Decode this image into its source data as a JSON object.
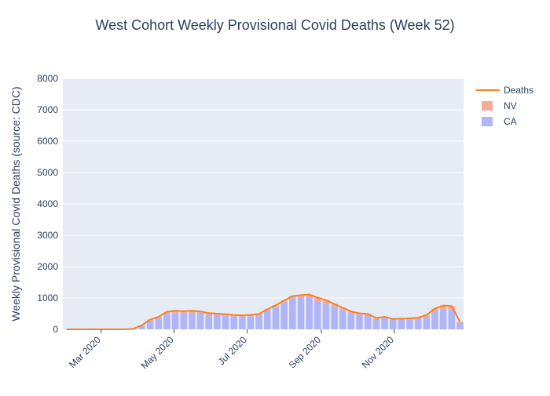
{
  "chart_data": {
    "type": "bar",
    "title": "West Cohort Weekly Provisional Covid Deaths (Week 52)",
    "xlabel": "",
    "ylabel": "Weekly Provisional Covid Deaths (source: CDC)",
    "ylim": [
      0,
      8000
    ],
    "y_ticks": [
      "0",
      "1000",
      "2000",
      "3000",
      "4000",
      "5000",
      "6000",
      "7000",
      "8000"
    ],
    "x_ticks": [
      {
        "date": "2020-03-01",
        "label": "Mar 2020"
      },
      {
        "date": "2020-05-01",
        "label": "May 2020"
      },
      {
        "date": "2020-07-01",
        "label": "Jul 2020"
      },
      {
        "date": "2020-09-01",
        "label": "Sep 2020"
      },
      {
        "date": "2020-11-01",
        "label": "Nov 2020"
      }
    ],
    "barmode": "stack",
    "grid": true,
    "legend_position": "right",
    "x": [
      "2020-02-01",
      "2020-02-08",
      "2020-02-15",
      "2020-02-22",
      "2020-02-29",
      "2020-03-07",
      "2020-03-14",
      "2020-03-21",
      "2020-03-28",
      "2020-04-04",
      "2020-04-11",
      "2020-04-18",
      "2020-04-25",
      "2020-05-02",
      "2020-05-09",
      "2020-05-16",
      "2020-05-23",
      "2020-05-30",
      "2020-06-06",
      "2020-06-13",
      "2020-06-20",
      "2020-06-27",
      "2020-07-04",
      "2020-07-11",
      "2020-07-18",
      "2020-07-25",
      "2020-08-01",
      "2020-08-08",
      "2020-08-15",
      "2020-08-22",
      "2020-08-29",
      "2020-09-05",
      "2020-09-12",
      "2020-09-19",
      "2020-09-26",
      "2020-10-03",
      "2020-10-10",
      "2020-10-17",
      "2020-10-24",
      "2020-10-31",
      "2020-11-07",
      "2020-11-14",
      "2020-11-21",
      "2020-11-28",
      "2020-12-05",
      "2020-12-12",
      "2020-12-19",
      "2020-12-26"
    ],
    "series": [
      {
        "name": "CA",
        "kind": "bar",
        "color": "#b0b4f8",
        "values": [
          0,
          0,
          0,
          0,
          0,
          0,
          0,
          0,
          20,
          110,
          270,
          350,
          490,
          520,
          500,
          520,
          510,
          460,
          450,
          430,
          410,
          410,
          420,
          450,
          600,
          720,
          860,
          990,
          1000,
          1000,
          900,
          820,
          720,
          620,
          510,
          460,
          450,
          330,
          360,
          300,
          300,
          310,
          330,
          400,
          560,
          640,
          620,
          210
        ]
      },
      {
        "name": "NV",
        "kind": "bar",
        "color": "#f7aa9a",
        "values": [
          0,
          0,
          0,
          0,
          0,
          0,
          0,
          0,
          0,
          20,
          40,
          50,
          70,
          70,
          80,
          70,
          60,
          60,
          50,
          50,
          50,
          40,
          40,
          40,
          40,
          50,
          60,
          70,
          90,
          110,
          110,
          110,
          90,
          70,
          60,
          50,
          40,
          30,
          40,
          30,
          40,
          40,
          40,
          60,
          100,
          120,
          120,
          30
        ]
      },
      {
        "name": "Deaths",
        "kind": "line",
        "color": "#f58220",
        "values": [
          0,
          0,
          0,
          0,
          0,
          0,
          0,
          0,
          20,
          130,
          310,
          400,
          560,
          590,
          580,
          590,
          570,
          520,
          500,
          480,
          460,
          450,
          460,
          490,
          640,
          770,
          920,
          1060,
          1090,
          1110,
          1010,
          930,
          810,
          690,
          570,
          510,
          490,
          360,
          400,
          330,
          340,
          350,
          370,
          460,
          660,
          760,
          740,
          240
        ]
      }
    ]
  }
}
